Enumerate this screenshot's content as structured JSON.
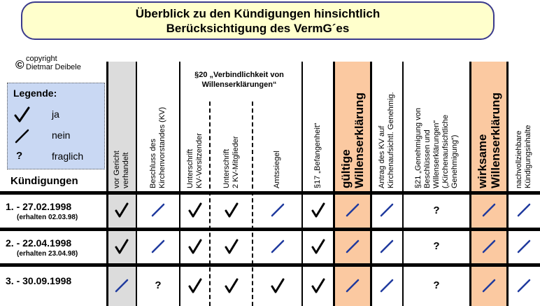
{
  "title": {
    "line1": "Überblick zu den Kündigungen hinsichtlich",
    "line2": "Berücksichtigung des VermG´es"
  },
  "copyright": {
    "symbol": "©",
    "line1": "copyright",
    "line2": "Dietmar Deibele"
  },
  "legend": {
    "title": "Legende:",
    "items": [
      {
        "icon": "check-icon",
        "label": "ja"
      },
      {
        "icon": "slash-icon",
        "label": "nein"
      },
      {
        "icon": "question-mark",
        "label": "fraglich"
      }
    ]
  },
  "row_header": "Kündigungen",
  "section20": "§20  „Verbindlichkeit von Willenserklärungen“",
  "columns": [
    {
      "label": "vor Gericht\nverhandelt",
      "shade": "gray"
    },
    {
      "label": "Beschluss des\nKirchenvorstandes (KV)",
      "shade": "none"
    },
    {
      "label": "Unterschrift\nKV-Vorsitzender",
      "shade": "none"
    },
    {
      "label": "Unterschrift\n2 KV-Mitglieder",
      "shade": "none"
    },
    {
      "label": "Amtssiegel",
      "shade": "none"
    },
    {
      "label": "§17 „Befangenheit“",
      "shade": "none"
    },
    {
      "label": "gültige\nWillenserklärung",
      "shade": "orange",
      "big": true
    },
    {
      "label": "Antrag des KV auf\nKirchenaufsichtl. Genehmig.",
      "shade": "none"
    },
    {
      "label": "§21 „Genehmigung von\nBeschlüssen und\nWillenserklärungen“\n(„Kirchenaufsichtliche\nGenehmigung“)",
      "shade": "none"
    },
    {
      "label": "wirksame\nWillenserklärung",
      "shade": "orange",
      "big": true
    },
    {
      "label": "nachvollziehbare\nKündigungsinhalte",
      "shade": "none"
    }
  ],
  "rows": [
    {
      "date": "1. -  27.02.1998",
      "sub": "(erhalten 02.03.98)",
      "values": [
        "check",
        "slash",
        "check",
        "check",
        "slash",
        "check",
        "slash",
        "slash",
        "?",
        "slash",
        "slash"
      ]
    },
    {
      "date": "2. -  22.04.1998",
      "sub": "(erhalten 23.04.98)",
      "values": [
        "check",
        "slash",
        "check",
        "check",
        "slash",
        "check",
        "slash",
        "slash",
        "?",
        "slash",
        "slash"
      ]
    },
    {
      "date": "3. -  30.09.1998",
      "sub": "",
      "values": [
        "slash",
        "?",
        "check",
        "check",
        "check",
        "check",
        "slash",
        "slash",
        "?",
        "slash",
        "slash"
      ]
    }
  ],
  "colors": {
    "title_bg": "#ffffcc",
    "title_border": "#3a3a8c",
    "legend_bg": "#c9d8f3",
    "gray": "#dcdcdc",
    "orange": "#fbc9a1",
    "slash": "#1f3a9e"
  }
}
